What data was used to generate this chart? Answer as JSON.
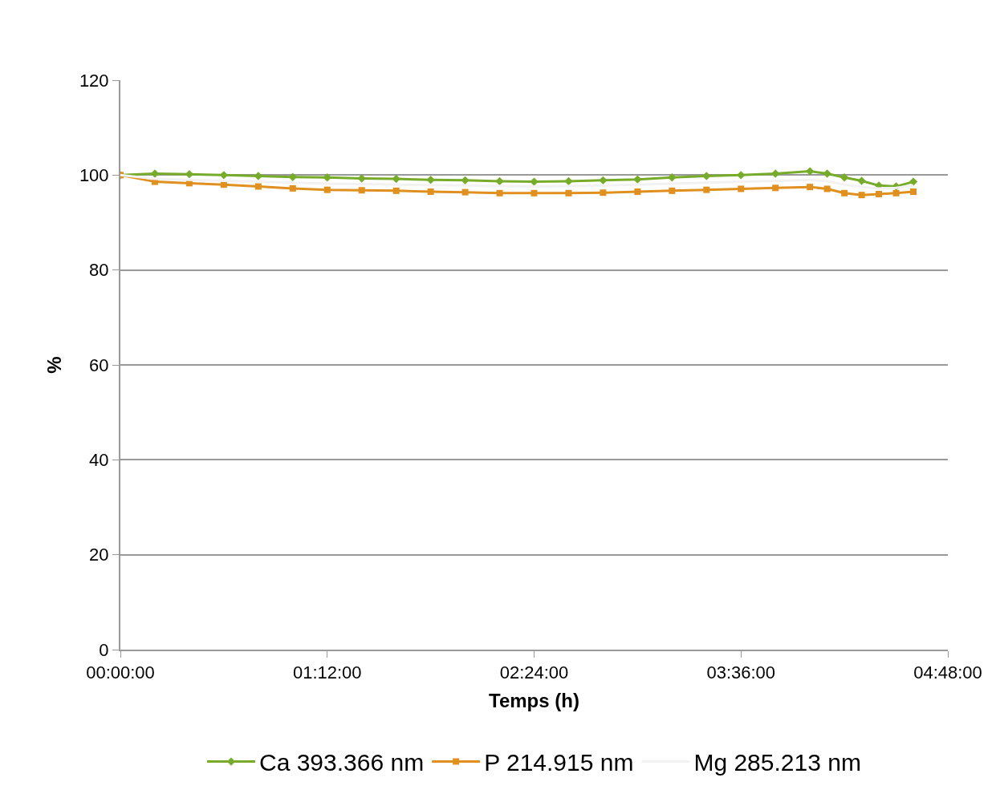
{
  "chart_data": {
    "type": "line",
    "xlabel": "Temps (h)",
    "ylabel": "%",
    "x": [
      0,
      0.2,
      0.4,
      0.6,
      0.8,
      1.0,
      1.2,
      1.4,
      1.6,
      1.8,
      2.0,
      2.2,
      2.4,
      2.6,
      2.8,
      3.0,
      3.2,
      3.4,
      3.6,
      3.8,
      4.0,
      4.1,
      4.2,
      4.3,
      4.4,
      4.5,
      4.6
    ],
    "series": [
      {
        "name": "Ca 393.366 nm",
        "color": "#77ac2a",
        "marker": "diamond",
        "values": [
          100,
          100.3,
          100.2,
          100,
          99.8,
          99.6,
          99.5,
          99.3,
          99.2,
          99,
          98.9,
          98.7,
          98.6,
          98.7,
          98.9,
          99.1,
          99.5,
          99.8,
          100,
          100.3,
          100.8,
          100.3,
          99.5,
          98.8,
          97.8,
          97.6,
          98.6
        ]
      },
      {
        "name": "P 214.915 nm",
        "color": "#e0901e",
        "marker": "square",
        "values": [
          100,
          98.6,
          98.3,
          98,
          97.6,
          97.2,
          96.9,
          96.8,
          96.7,
          96.5,
          96.4,
          96.2,
          96.2,
          96.2,
          96.3,
          96.5,
          96.7,
          96.9,
          97.1,
          97.3,
          97.5,
          97.1,
          96.2,
          95.8,
          96,
          96.2,
          96.5
        ]
      },
      {
        "name": "Mg 285.213 nm",
        "color": "#f2f2f2",
        "marker": "none",
        "values": [
          100,
          99.2,
          99,
          98.8,
          98.6,
          98.4,
          98.2,
          98.1,
          98,
          97.9,
          97.8,
          97.7,
          97.6,
          97.7,
          97.8,
          98,
          98.2,
          98.4,
          98.6,
          98.8,
          99,
          98.7,
          98,
          97.5,
          97.2,
          97.3,
          97.8
        ]
      }
    ],
    "xlim": [
      0,
      4.8
    ],
    "xticks": [
      {
        "value": 0,
        "label": "00:00:00"
      },
      {
        "value": 1.2,
        "label": "01:12:00"
      },
      {
        "value": 2.4,
        "label": "02:24:00"
      },
      {
        "value": 3.6,
        "label": "03:36:00"
      },
      {
        "value": 4.8,
        "label": "04:48:00"
      }
    ],
    "ylim": [
      0,
      120
    ],
    "yticks": [
      0,
      20,
      40,
      60,
      80,
      100,
      120
    ],
    "grid": "y",
    "legend": "bottom"
  }
}
